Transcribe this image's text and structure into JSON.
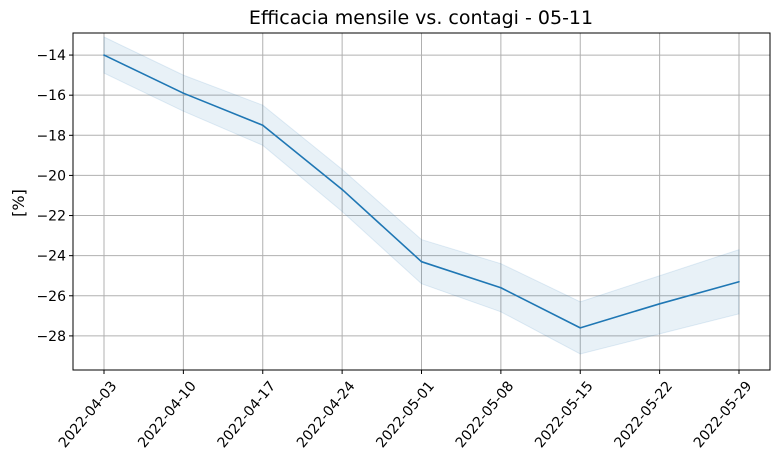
{
  "chart_data": {
    "type": "line",
    "title": "Efficacia mensile vs. contagi - 05-11",
    "xlabel": "",
    "ylabel": "[%]",
    "x": [
      "2022-04-03",
      "2022-04-10",
      "2022-04-17",
      "2022-04-24",
      "2022-05-01",
      "2022-05-08",
      "2022-05-15",
      "2022-05-22",
      "2022-05-29"
    ],
    "xticks": [
      "2022-04-03",
      "2022-04-10",
      "2022-04-17",
      "2022-04-24",
      "2022-05-01",
      "2022-05-08",
      "2022-05-15",
      "2022-05-22",
      "2022-05-29"
    ],
    "yticks": [
      -14,
      -16,
      -18,
      -20,
      -22,
      -24,
      -26,
      -28
    ],
    "ytick_labels": [
      "−14",
      "−16",
      "−18",
      "−20",
      "−22",
      "−24",
      "−26",
      "−28"
    ],
    "ylim": [
      -29.7,
      -12.9
    ],
    "grid": true,
    "series": [
      {
        "values": [
          -14.0,
          -15.9,
          -17.5,
          -20.7,
          -24.3,
          -25.6,
          -27.6,
          -26.4,
          -25.3
        ],
        "lower": [
          -14.9,
          -16.8,
          -18.5,
          -21.8,
          -25.4,
          -26.8,
          -28.9,
          -27.9,
          -26.9
        ],
        "upper": [
          -13.1,
          -15.0,
          -16.5,
          -19.7,
          -23.2,
          -24.4,
          -26.3,
          -25.0,
          -23.7
        ],
        "color": "#1f77b4",
        "band_color": "#1f77b4"
      }
    ]
  }
}
